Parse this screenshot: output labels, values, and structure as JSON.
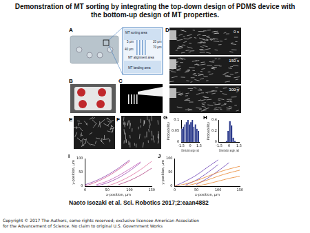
{
  "header": {
    "title": "Demonstration of MT sorting by integrating the top-down design of PDMS device with the bottom-up design of MT properties."
  },
  "panels": [
    {
      "label": "A",
      "texts": [
        "MT sorting area",
        "5 µm",
        "20 µm",
        "70 µm",
        "40 µm",
        "MT alignment area",
        "MT landing area"
      ]
    },
    {
      "label": "B"
    },
    {
      "label": "C"
    },
    {
      "label": "D",
      "texts": [
        "0 s",
        "150 s",
        "300 s"
      ]
    },
    {
      "label": "E"
    },
    {
      "label": "F"
    }
  ],
  "chart_data": [
    {
      "title": "G",
      "type": "histogram",
      "xlabel": "Orientation angle, rad",
      "ylabel": "Probability",
      "bins": [
        -1.5,
        -1.25,
        -1,
        -0.75,
        -0.5,
        -0.25,
        0,
        0.25,
        0.5,
        0.75,
        1,
        1.25,
        1.5
      ],
      "values": [
        0.06,
        0.07,
        0.08,
        0.09,
        0.1,
        0.08,
        0.09,
        0.1,
        0.07,
        0.08,
        0.06,
        0.05
      ],
      "color": "#2b3a8c",
      "xlim": [
        -1.5,
        1.5
      ],
      "xticks": [
        -1.5,
        0,
        1.5
      ],
      "ylim": [
        0,
        0.1
      ],
      "yticks": [
        0,
        0.05,
        0.1
      ],
      "grid": false
    },
    {
      "title": "H",
      "type": "histogram",
      "xlabel": "Orientation angle, rad",
      "ylabel": "Probability",
      "bins": [
        -1.5,
        -1.25,
        -1,
        -0.75,
        -0.5,
        -0.25,
        0,
        0.25,
        0.5,
        0.75,
        1,
        1.25,
        1.5
      ],
      "values": [
        0,
        0,
        0,
        0,
        0.02,
        0.2,
        0.38,
        0.3,
        0.08,
        0.02,
        0,
        0
      ],
      "color": "#2b3a8c",
      "xlim": [
        -1.5,
        1.5
      ],
      "xticks": [
        -1.5,
        0,
        1.5
      ],
      "ylim": [
        0,
        0.4
      ],
      "yticks": [
        0,
        0.2,
        0.4
      ],
      "grid": false
    },
    {
      "title": "I",
      "type": "line",
      "xlabel": "x-position, µm",
      "ylabel": "y-position, µm",
      "x": [
        0,
        25,
        50,
        75,
        100,
        125,
        150
      ],
      "series": [
        {
          "color": "#d0508c",
          "values": [
            0,
            15,
            35,
            60,
            90,
            null,
            null
          ]
        },
        {
          "color": "#a04ab0",
          "values": [
            null,
            0,
            12,
            30,
            55,
            85,
            null
          ]
        },
        {
          "color": "#e070a0",
          "values": [
            null,
            null,
            0,
            15,
            35,
            60,
            90
          ]
        },
        {
          "color": "#8a3fa8",
          "values": [
            5,
            20,
            40,
            65,
            95,
            null,
            null
          ]
        },
        {
          "color": "#c45cb8",
          "values": [
            null,
            5,
            18,
            38,
            62,
            88,
            null
          ]
        },
        {
          "color": "#b04080",
          "values": [
            null,
            null,
            null,
            5,
            20,
            40,
            65
          ]
        }
      ],
      "xlim": [
        0,
        150
      ],
      "xticks": [
        0,
        50,
        100,
        150
      ],
      "ylim": [
        0,
        100
      ],
      "yticks": [
        0,
        50,
        100
      ],
      "grid": false
    },
    {
      "title": "J",
      "type": "line",
      "xlabel": "x-position, µm",
      "ylabel": "y-position, µm",
      "x": [
        0,
        25,
        50,
        75,
        100,
        125,
        150
      ],
      "series": [
        {
          "color": "#e8832a",
          "values": [
            0,
            8,
            20,
            35,
            50,
            62,
            72
          ]
        },
        {
          "color": "#e8832a",
          "values": [
            null,
            0,
            10,
            22,
            36,
            48,
            58
          ]
        },
        {
          "color": "#e8832a",
          "values": [
            null,
            null,
            0,
            8,
            18,
            28,
            36
          ]
        },
        {
          "color": "#6a3fb5",
          "values": [
            0,
            18,
            40,
            68,
            95,
            null,
            null
          ]
        },
        {
          "color": "#6a3fb5",
          "values": [
            null,
            4,
            22,
            48,
            78,
            null,
            null
          ]
        },
        {
          "color": "#6a3fb5",
          "values": [
            null,
            null,
            6,
            28,
            55,
            85,
            null
          ]
        }
      ],
      "xlim": [
        0,
        150
      ],
      "xticks": [
        0,
        50,
        100,
        150
      ],
      "ylim": [
        0,
        100
      ],
      "yticks": [
        0,
        50,
        100
      ],
      "grid": false
    }
  ],
  "citation": "Naoto Isozaki et al. Sci. Robotics 2017;2:eaan4882",
  "copyright": [
    "Copyright © 2017 The Authors, some rights reserved; exclusive licensee American Association",
    "for the Advancement of Science. No claim to original U.S. Government Works"
  ]
}
